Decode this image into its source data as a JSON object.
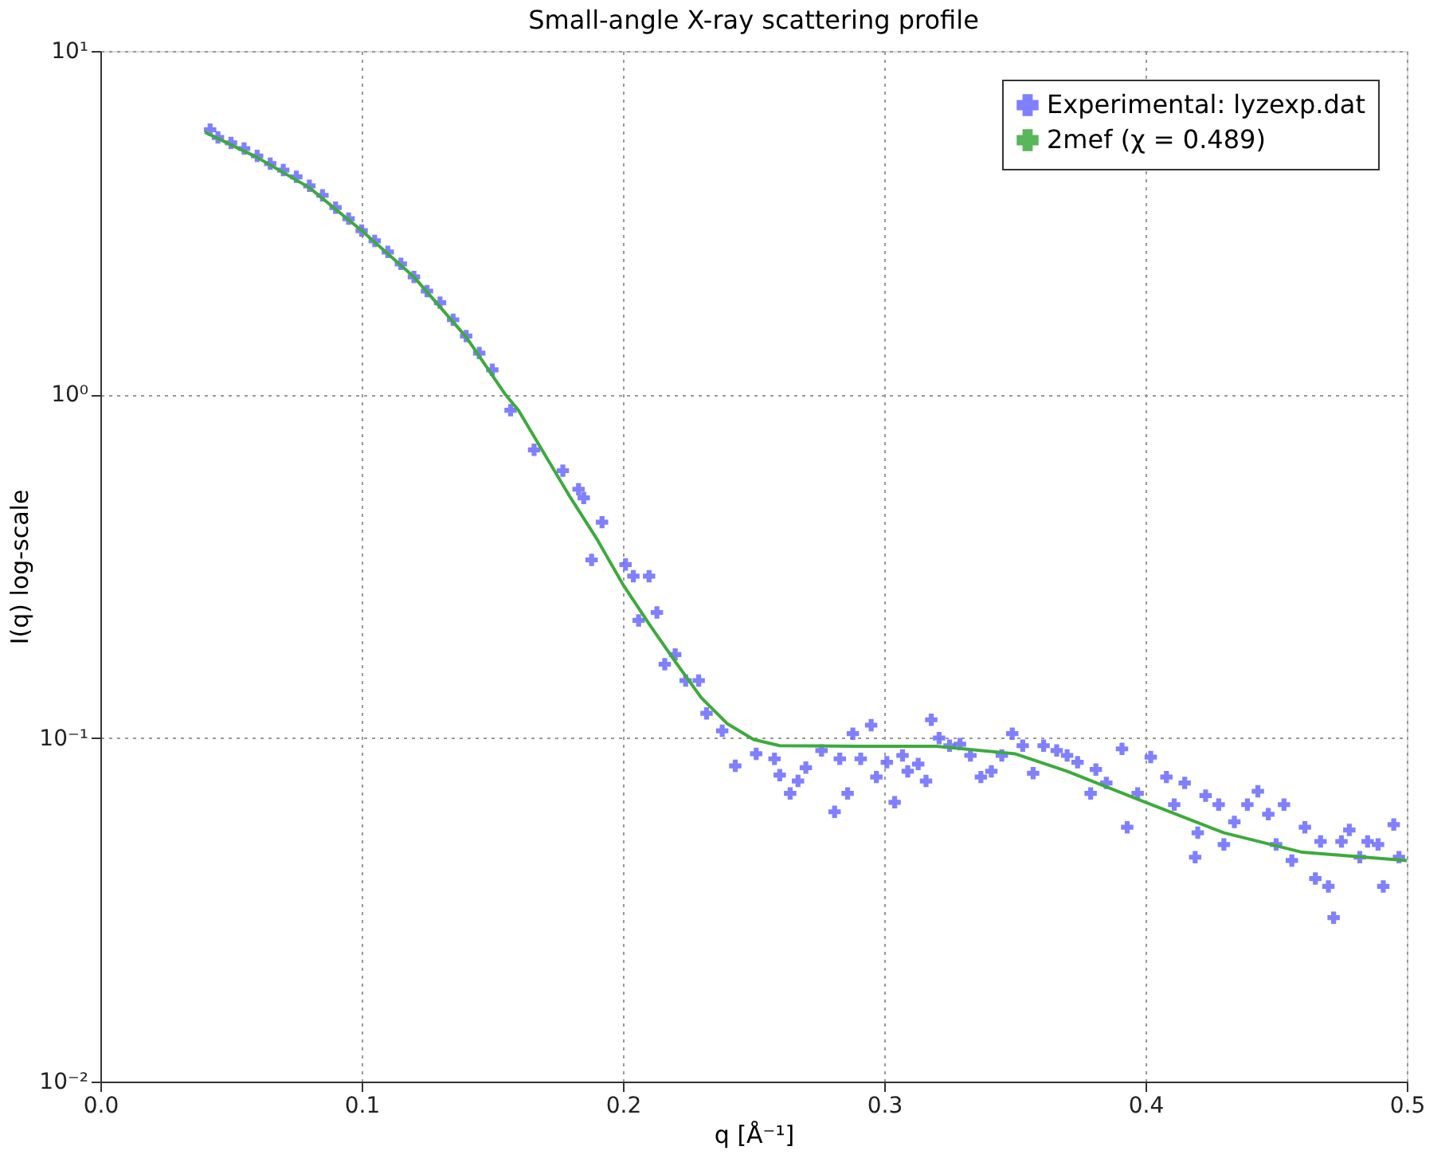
{
  "chart_data": {
    "type": "scatter",
    "title": "Small-angle X-ray scattering profile",
    "xlabel": "q [Å⁻¹]",
    "ylabel": "I(q) log-scale",
    "log": "y",
    "grid": true,
    "legend": "top right",
    "xlim": [
      0,
      0.5
    ],
    "xticks": [
      {
        "value": 0,
        "label": "0.0"
      },
      0.1,
      0.2,
      0.3,
      0.4,
      0.5
    ],
    "ylim": [
      0.01,
      10
    ],
    "yticks": [
      {
        "value": 0.01,
        "label": "10⁻²"
      },
      {
        "value": 0.1,
        "label": "10⁻¹"
      },
      {
        "value": 1,
        "label": "10⁰"
      },
      {
        "value": 10,
        "label": "10¹"
      }
    ],
    "series": [
      {
        "name": "Experimental: lyzexp.dat",
        "marker": "cross",
        "color": "#6a6aff",
        "x": [
          0.042,
          0.045,
          0.05,
          0.055,
          0.06,
          0.065,
          0.07,
          0.075,
          0.08,
          0.085,
          0.09,
          0.095,
          0.1,
          0.105,
          0.11,
          0.115,
          0.12,
          0.125,
          0.13,
          0.135,
          0.14,
          0.145,
          0.15,
          0.157,
          0.166,
          0.177,
          0.183,
          0.185,
          0.192,
          0.188,
          0.201,
          0.21,
          0.204,
          0.213,
          0.206,
          0.22,
          0.216,
          0.229,
          0.224,
          0.232,
          0.238,
          0.243,
          0.251,
          0.258,
          0.26,
          0.264,
          0.267,
          0.27,
          0.276,
          0.281,
          0.283,
          0.286,
          0.288,
          0.291,
          0.295,
          0.297,
          0.301,
          0.304,
          0.307,
          0.309,
          0.313,
          0.316,
          0.318,
          0.321,
          0.325,
          0.329,
          0.333,
          0.337,
          0.341,
          0.345,
          0.349,
          0.353,
          0.357,
          0.361,
          0.366,
          0.37,
          0.374,
          0.379,
          0.381,
          0.385,
          0.391,
          0.393,
          0.397,
          0.402,
          0.408,
          0.411,
          0.415,
          0.419,
          0.42,
          0.423,
          0.428,
          0.43,
          0.434,
          0.439,
          0.443,
          0.447,
          0.45,
          0.453,
          0.456,
          0.461,
          0.465,
          0.467,
          0.47,
          0.472,
          0.475,
          0.478,
          0.482,
          0.485,
          0.489,
          0.491,
          0.495,
          0.497
        ],
        "values": [
          5.9,
          5.6,
          5.4,
          5.2,
          4.95,
          4.7,
          4.5,
          4.3,
          4.05,
          3.8,
          3.5,
          3.25,
          3.0,
          2.8,
          2.6,
          2.4,
          2.2,
          2.0,
          1.85,
          1.65,
          1.48,
          1.32,
          1.18,
          0.9,
          0.69,
          0.6,
          0.53,
          0.5,
          0.425,
          0.33,
          0.32,
          0.296,
          0.296,
          0.232,
          0.22,
          0.175,
          0.164,
          0.147,
          0.147,
          0.118,
          0.105,
          0.083,
          0.09,
          0.087,
          0.078,
          0.069,
          0.075,
          0.082,
          0.092,
          0.061,
          0.087,
          0.069,
          0.103,
          0.087,
          0.109,
          0.077,
          0.085,
          0.065,
          0.089,
          0.08,
          0.084,
          0.075,
          0.113,
          0.1,
          0.095,
          0.096,
          0.089,
          0.077,
          0.08,
          0.089,
          0.103,
          0.095,
          0.079,
          0.095,
          0.092,
          0.089,
          0.085,
          0.069,
          0.081,
          0.074,
          0.093,
          0.055,
          0.069,
          0.088,
          0.077,
          0.064,
          0.074,
          0.045,
          0.053,
          0.068,
          0.064,
          0.049,
          0.057,
          0.064,
          0.07,
          0.06,
          0.049,
          0.064,
          0.044,
          0.055,
          0.039,
          0.05,
          0.037,
          0.03,
          0.05,
          0.054,
          0.045,
          0.05,
          0.049,
          0.037,
          0.056,
          0.045
        ]
      },
      {
        "name": "2mef (χ = 0.489)",
        "type": "line",
        "color": "#3daa3d",
        "line_style": "solid",
        "x": [
          0.04,
          0.06,
          0.08,
          0.1,
          0.12,
          0.14,
          0.155,
          0.16,
          0.17,
          0.18,
          0.19,
          0.2,
          0.21,
          0.22,
          0.23,
          0.24,
          0.25,
          0.26,
          0.29,
          0.32,
          0.35,
          0.37,
          0.4,
          0.43,
          0.46,
          0.5
        ],
        "values": [
          5.8,
          4.9,
          4.0,
          3.0,
          2.2,
          1.47,
          1.0,
          0.9,
          0.67,
          0.5,
          0.38,
          0.28,
          0.215,
          0.167,
          0.131,
          0.11,
          0.099,
          0.095,
          0.0946,
          0.0946,
          0.09,
          0.08,
          0.065,
          0.053,
          0.0465,
          0.044
        ]
      }
    ]
  }
}
